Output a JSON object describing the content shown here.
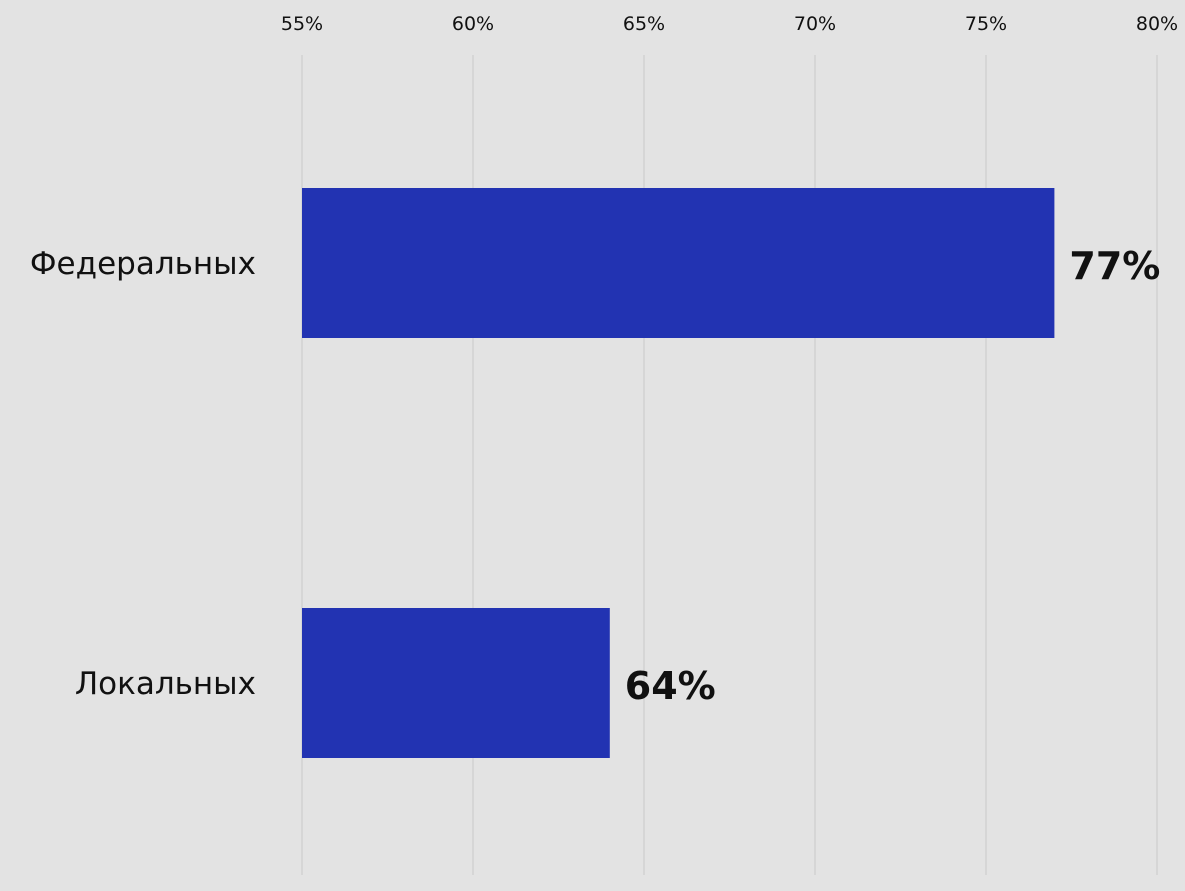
{
  "chart_data": {
    "type": "bar",
    "orientation": "horizontal",
    "categories": [
      "Федеральных",
      "Локальных"
    ],
    "values": [
      77,
      64
    ],
    "data_labels": [
      "77%",
      "64%"
    ],
    "x_ticks": [
      55,
      60,
      65,
      70,
      75,
      80
    ],
    "x_tick_labels": [
      "55%",
      "60%",
      "65%",
      "70%",
      "75%",
      "80%"
    ],
    "xlim": [
      55,
      80
    ],
    "x_axis_position": "top",
    "grid": "vertical",
    "title": "",
    "xlabel": "",
    "ylabel": ""
  },
  "colors": {
    "background": "#e3e3e3",
    "bar": "#2233b2",
    "grid": "#d2d2d2",
    "text": "#111111"
  }
}
